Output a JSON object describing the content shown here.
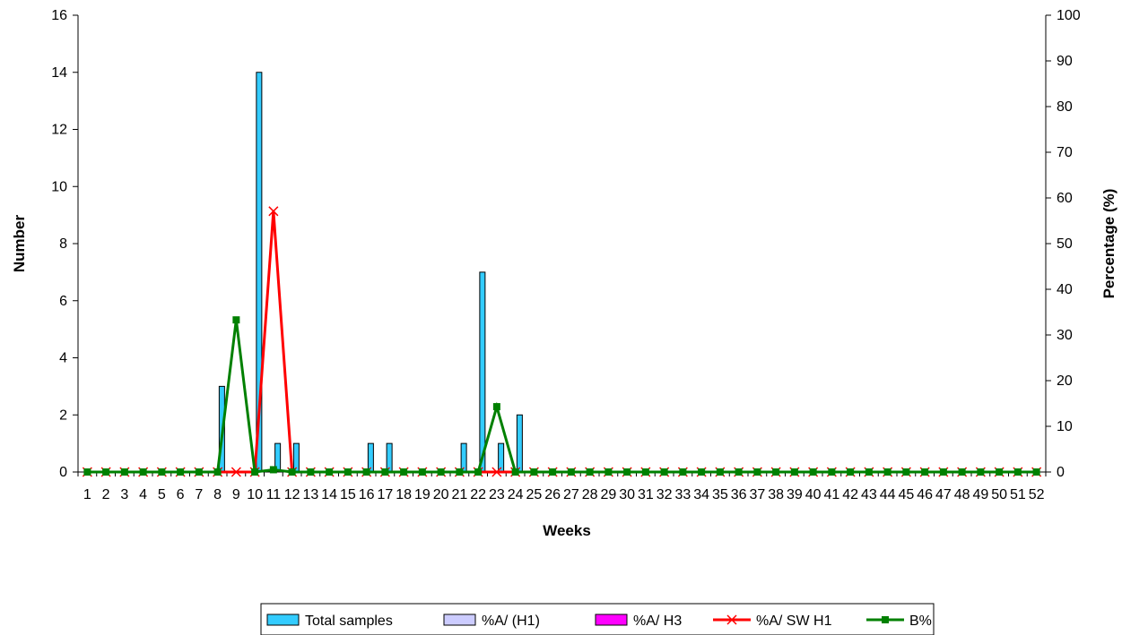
{
  "chart_data": {
    "type": "bar",
    "xlabel": "Weeks",
    "ylabel_left": "Number",
    "ylabel_right": "Percentage (%)",
    "ylim_left": [
      0,
      16
    ],
    "yticks_left": [
      0,
      2,
      4,
      6,
      8,
      10,
      12,
      14,
      16
    ],
    "ylim_right": [
      0,
      100
    ],
    "yticks_right": [
      0,
      10,
      20,
      30,
      40,
      50,
      60,
      70,
      80,
      90,
      100
    ],
    "grid": false,
    "legend_position": "bottom",
    "categories": [
      "1",
      "2",
      "3",
      "4",
      "5",
      "6",
      "7",
      "8",
      "9",
      "10",
      "11",
      "12",
      "13",
      "14",
      "15",
      "16",
      "17",
      "18",
      "19",
      "20",
      "21",
      "22",
      "23",
      "24",
      "25",
      "26",
      "27",
      "28",
      "29",
      "30",
      "31",
      "32",
      "33",
      "34",
      "35",
      "36",
      "37",
      "38",
      "39",
      "40",
      "41",
      "42",
      "43",
      "44",
      "45",
      "46",
      "47",
      "48",
      "49",
      "50",
      "51",
      "52"
    ],
    "series": [
      {
        "name": "Total samples",
        "type": "bar",
        "axis": "left",
        "color": "#33CCFF",
        "values": [
          0,
          0,
          0,
          0,
          0,
          0,
          0,
          0,
          3,
          0,
          14,
          1,
          1,
          0,
          0,
          0,
          1,
          1,
          0,
          0,
          0,
          1,
          7,
          1,
          2,
          0,
          0,
          0,
          0,
          0,
          0,
          0,
          0,
          0,
          0,
          0,
          0,
          0,
          0,
          0,
          0,
          0,
          0,
          0,
          0,
          0,
          0,
          0,
          0,
          0,
          0,
          0
        ]
      },
      {
        "name": "%A/ (H1)",
        "type": "bar",
        "axis": "right",
        "color": "#CCCCFF",
        "values": [
          0,
          0,
          0,
          0,
          0,
          0,
          0,
          0,
          0,
          0,
          0,
          0,
          0,
          0,
          0,
          0,
          0,
          0,
          0,
          0,
          0,
          0,
          0,
          0,
          0,
          0,
          0,
          0,
          0,
          0,
          0,
          0,
          0,
          0,
          0,
          0,
          0,
          0,
          0,
          0,
          0,
          0,
          0,
          0,
          0,
          0,
          0,
          0,
          0,
          0,
          0,
          0
        ]
      },
      {
        "name": "%A/ H3",
        "type": "bar",
        "axis": "right",
        "color": "#FF00FF",
        "values": [
          0,
          0,
          0,
          0,
          0,
          0,
          0,
          0,
          0,
          0,
          0,
          0,
          0,
          0,
          0,
          0,
          0,
          0,
          0,
          0,
          0,
          0,
          0,
          0,
          0,
          0,
          0,
          0,
          0,
          0,
          0,
          0,
          0,
          0,
          0,
          0,
          0,
          0,
          0,
          0,
          0,
          0,
          0,
          0,
          0,
          0,
          0,
          0,
          0,
          0,
          0,
          0
        ]
      },
      {
        "name": "%A/ SW H1",
        "type": "line",
        "axis": "right",
        "color": "#FF0000",
        "marker": "x",
        "values": [
          0,
          0,
          0,
          0,
          0,
          0,
          0,
          0,
          0,
          0,
          57.1,
          0,
          0,
          0,
          0,
          0,
          0,
          0,
          0,
          0,
          0,
          0,
          0,
          0,
          0,
          0,
          0,
          0,
          0,
          0,
          0,
          0,
          0,
          0,
          0,
          0,
          0,
          0,
          0,
          0,
          0,
          0,
          0,
          0,
          0,
          0,
          0,
          0,
          0,
          0,
          0,
          0
        ]
      },
      {
        "name": "B%",
        "type": "line",
        "axis": "right",
        "color": "#008000",
        "marker": "square",
        "values": [
          0,
          0,
          0,
          0,
          0,
          0,
          0,
          0,
          33.3,
          0,
          0.5,
          0,
          0,
          0,
          0,
          0,
          0,
          0,
          0,
          0,
          0,
          0,
          14.3,
          0,
          0,
          0,
          0,
          0,
          0,
          0,
          0,
          0,
          0,
          0,
          0,
          0,
          0,
          0,
          0,
          0,
          0,
          0,
          0,
          0,
          0,
          0,
          0,
          0,
          0,
          0,
          0,
          0
        ]
      }
    ]
  }
}
